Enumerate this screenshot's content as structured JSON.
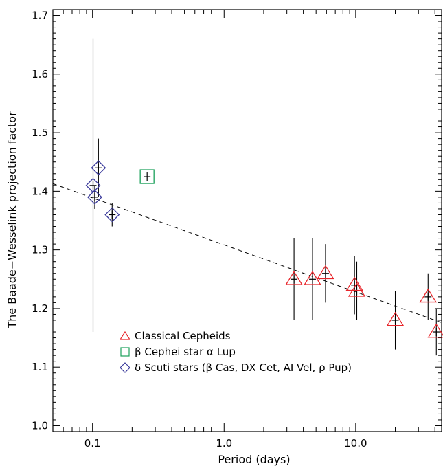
{
  "chart_data": {
    "type": "scatter",
    "title": "",
    "xlabel": "Period (days)",
    "ylabel": "The Baade−Wesselink projection factor",
    "xscale": "log",
    "xlim": [
      0.05,
      45
    ],
    "ylim": [
      0.99,
      1.71
    ],
    "xticks": [
      0.1,
      1.0,
      10.0
    ],
    "xtick_labels": [
      "0.1",
      "1.0",
      "10.0"
    ],
    "yticks": [
      1.0,
      1.1,
      1.2,
      1.3,
      1.4,
      1.5,
      1.6,
      1.7
    ],
    "ytick_labels": [
      "1.0",
      "1.1",
      "1.2",
      "1.3",
      "1.4",
      "1.5",
      "1.6",
      "1.7"
    ],
    "grid": false,
    "legend_position": "bottom-left",
    "series": [
      {
        "name": "Classical Cepheids",
        "marker": "triangle",
        "color": "#e8262b",
        "points": [
          {
            "x": 3.4,
            "y": 1.25,
            "err": 0.07
          },
          {
            "x": 4.7,
            "y": 1.25,
            "err": 0.07
          },
          {
            "x": 5.9,
            "y": 1.26,
            "err": 0.05
          },
          {
            "x": 9.8,
            "y": 1.24,
            "err": 0.05
          },
          {
            "x": 10.2,
            "y": 1.23,
            "err": 0.05
          },
          {
            "x": 20.0,
            "y": 1.18,
            "err": 0.05
          },
          {
            "x": 35.5,
            "y": 1.22,
            "err": 0.04
          },
          {
            "x": 41.0,
            "y": 1.16,
            "err": 0.04
          }
        ]
      },
      {
        "name": "β Cephei star α Lup",
        "marker": "square",
        "color": "#1aa05a",
        "points": [
          {
            "x": 0.26,
            "y": 1.425,
            "err": 0.0
          }
        ]
      },
      {
        "name": "δ Scuti stars (β Cas, DX Cet, AI Vel, ρ Pup)",
        "marker": "diamond",
        "color": "#3b3b9c",
        "points": [
          {
            "x": 0.101,
            "y": 1.41,
            "err": 0.25
          },
          {
            "x": 0.104,
            "y": 1.39,
            "err": 0.02
          },
          {
            "x": 0.111,
            "y": 1.44,
            "err": 0.05
          },
          {
            "x": 0.141,
            "y": 1.36,
            "err": 0.02
          }
        ]
      }
    ],
    "fit_line": {
      "style": "dashed",
      "x": [
        0.05,
        45
      ],
      "y": [
        1.413,
        1.176
      ]
    }
  }
}
